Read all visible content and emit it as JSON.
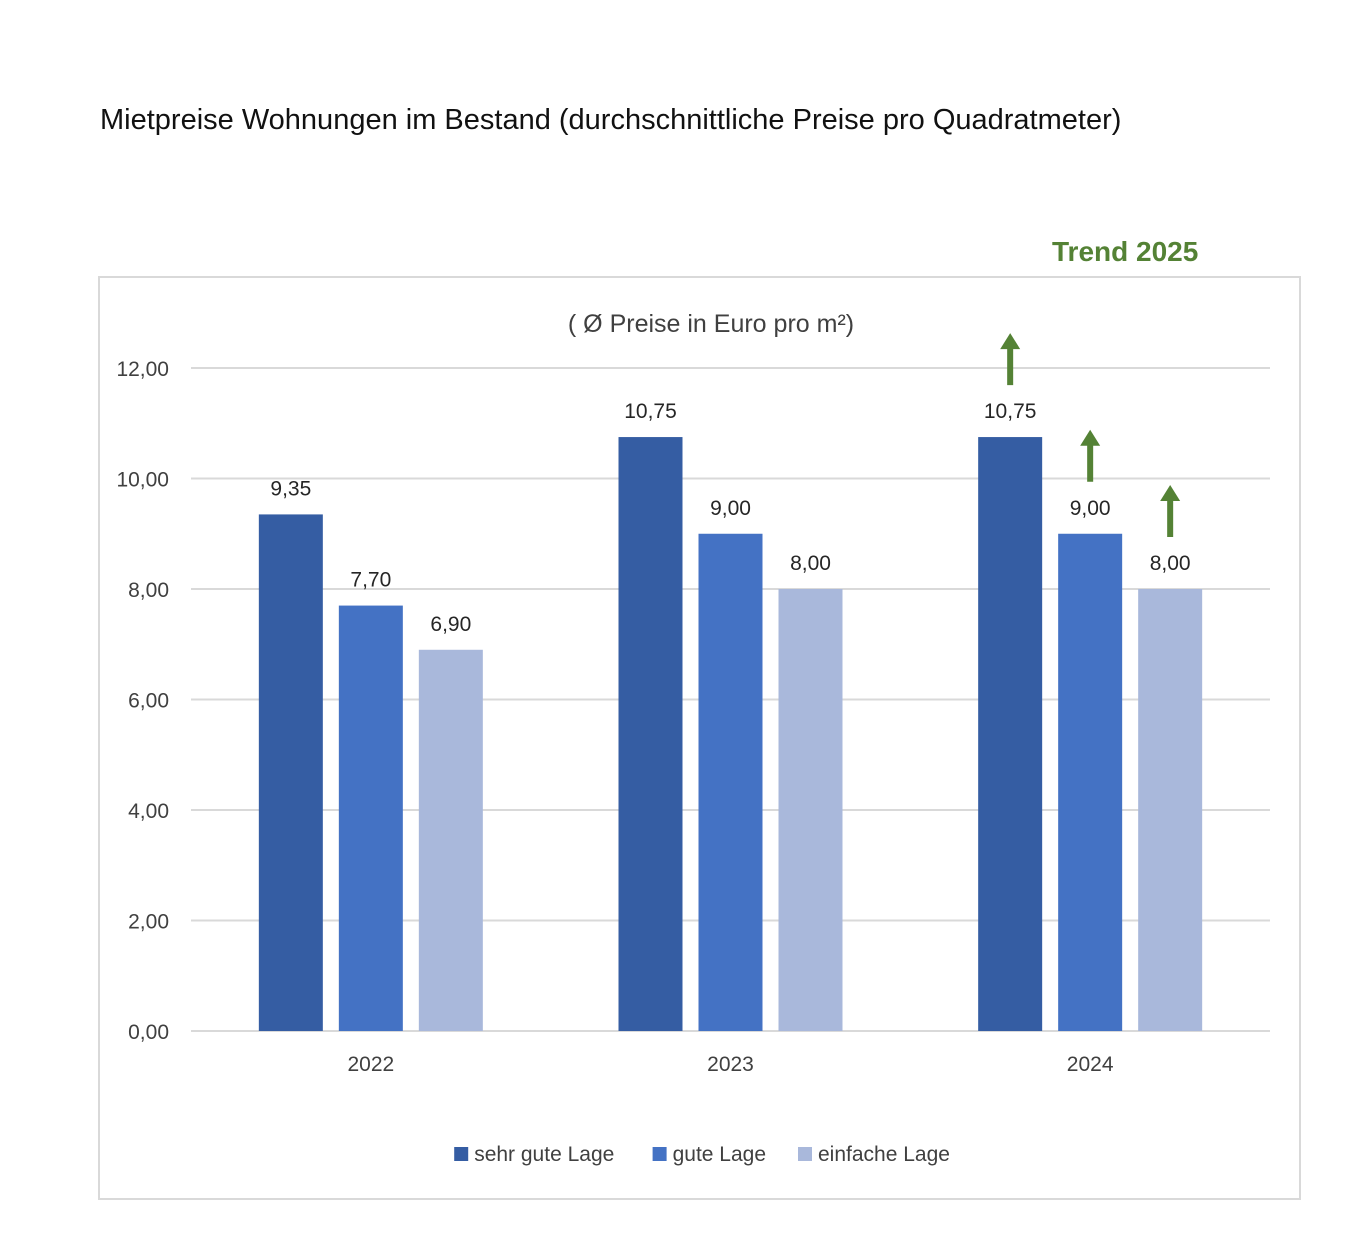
{
  "page": {
    "title": "Mietpreise Wohnungen im Bestand (durchschnittliche Preise pro Quadratmeter)",
    "trend_label": "Trend 2025"
  },
  "colors": {
    "sehr_gute_lage": "#355da3",
    "gute_lage": "#4472c4",
    "einfache_lage": "#a9b8db",
    "trend": "#548235",
    "grid": "#d9d9d9",
    "frame": "#d9d9d9",
    "text": "#404040"
  },
  "chart_data": {
    "type": "bar",
    "title": "( Ø Preise in Euro pro m²)",
    "xlabel": "",
    "ylabel": "",
    "categories": [
      "2022",
      "2023",
      "2024"
    ],
    "series": [
      {
        "name": "sehr gute Lage",
        "values": [
          9.35,
          10.75,
          10.75
        ],
        "labels": [
          "9,35",
          "10,75",
          "10,75"
        ]
      },
      {
        "name": "gute Lage",
        "values": [
          7.7,
          9.0,
          9.0
        ],
        "labels": [
          "7,70",
          "9,00",
          "9,00"
        ]
      },
      {
        "name": "einfache Lage",
        "values": [
          6.9,
          8.0,
          8.0
        ],
        "labels": [
          "6,90",
          "8,00",
          "8,00"
        ]
      }
    ],
    "ylim": [
      0,
      12
    ],
    "yticks": [
      0,
      2,
      4,
      6,
      8,
      10,
      12
    ],
    "ytick_labels": [
      "0,00",
      "2,00",
      "4,00",
      "6,00",
      "8,00",
      "10,00",
      "12,00"
    ],
    "grid": true,
    "legend_position": "bottom",
    "annotations": {
      "trend_arrows": {
        "category": "2024",
        "direction": "up",
        "series": [
          "sehr gute Lage",
          "gute Lage",
          "einfache Lage"
        ]
      }
    }
  }
}
